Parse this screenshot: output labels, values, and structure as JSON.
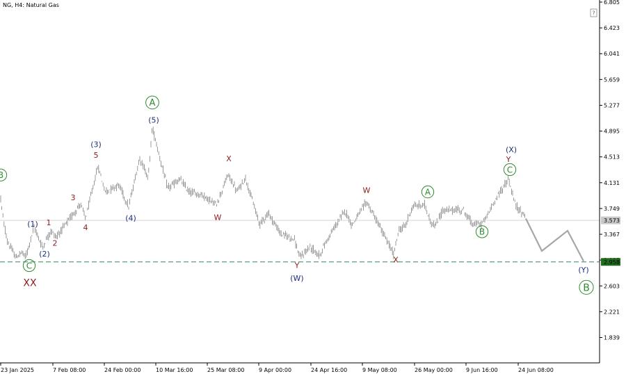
{
  "chart_data": {
    "type": "candlestick",
    "symbol_label": "NG, H4:  Natural Gas",
    "colors": {
      "candle": "#7f7f7f",
      "projection": "#a6a6a6",
      "support": "#2e8b57",
      "current_line": "#c8c8c8",
      "red": "#8b1a1a",
      "blue": "#1f2e7a",
      "green": "#2e8b2e",
      "badge": "#1f6b1f",
      "current_badge": "#c8c8c8"
    },
    "y_axis": {
      "min": 1.45,
      "max": 6.805,
      "ticks": [
        "6.805",
        "6.423",
        "6.041",
        "5.659",
        "5.277",
        "4.895",
        "4.513",
        "4.131",
        "3.749",
        "3.367",
        "2.985",
        "2.603",
        "2.221",
        "1.839"
      ]
    },
    "x_axis": {
      "ticks": [
        "23 Jan 2025",
        "7 Feb 08:00",
        "24 Feb 00:00",
        "10 Mar 16:00",
        "25 Mar 08:00",
        "9 Apr 00:00",
        "24 Apr 16:00",
        "9 May 08:00",
        "26 May 00:00",
        "9 Jun 16:00",
        "24 Jun 08:00"
      ]
    },
    "current_price": "3.573",
    "support_price": "2.958",
    "price_path": [
      {
        "bar": 0,
        "price": 3.9
      },
      {
        "bar": 4,
        "price": 3.55
      },
      {
        "bar": 10,
        "price": 3.25
      },
      {
        "bar": 22,
        "price": 3.02
      },
      {
        "bar": 30,
        "price": 3.1
      },
      {
        "bar": 36,
        "price": 3.03
      },
      {
        "bar": 48,
        "price": 3.48
      },
      {
        "bar": 60,
        "price": 3.17
      },
      {
        "bar": 72,
        "price": 3.42
      },
      {
        "bar": 80,
        "price": 3.33
      },
      {
        "bar": 98,
        "price": 3.58
      },
      {
        "bar": 115,
        "price": 3.82
      },
      {
        "bar": 122,
        "price": 3.6
      },
      {
        "bar": 140,
        "price": 4.38
      },
      {
        "bar": 150,
        "price": 4.0
      },
      {
        "bar": 170,
        "price": 4.1
      },
      {
        "bar": 184,
        "price": 3.77
      },
      {
        "bar": 200,
        "price": 4.5
      },
      {
        "bar": 212,
        "price": 4.2
      },
      {
        "bar": 218,
        "price": 4.95
      },
      {
        "bar": 230,
        "price": 4.45
      },
      {
        "bar": 240,
        "price": 4.05
      },
      {
        "bar": 258,
        "price": 4.18
      },
      {
        "bar": 270,
        "price": 4.0
      },
      {
        "bar": 290,
        "price": 3.95
      },
      {
        "bar": 310,
        "price": 3.8
      },
      {
        "bar": 327,
        "price": 4.25
      },
      {
        "bar": 340,
        "price": 4.0
      },
      {
        "bar": 352,
        "price": 4.2
      },
      {
        "bar": 372,
        "price": 3.52
      },
      {
        "bar": 385,
        "price": 3.68
      },
      {
        "bar": 402,
        "price": 3.38
      },
      {
        "bar": 422,
        "price": 3.3
      },
      {
        "bar": 430,
        "price": 3.02
      },
      {
        "bar": 445,
        "price": 3.18
      },
      {
        "bar": 458,
        "price": 3.05
      },
      {
        "bar": 470,
        "price": 3.3
      },
      {
        "bar": 485,
        "price": 3.55
      },
      {
        "bar": 495,
        "price": 3.72
      },
      {
        "bar": 505,
        "price": 3.5
      },
      {
        "bar": 526,
        "price": 3.85
      },
      {
        "bar": 545,
        "price": 3.48
      },
      {
        "bar": 565,
        "price": 3.07
      },
      {
        "bar": 572,
        "price": 3.42
      },
      {
        "bar": 582,
        "price": 3.5
      },
      {
        "bar": 592,
        "price": 3.78
      },
      {
        "bar": 610,
        "price": 3.8
      },
      {
        "bar": 618,
        "price": 3.55
      },
      {
        "bar": 625,
        "price": 3.48
      },
      {
        "bar": 635,
        "price": 3.72
      },
      {
        "bar": 665,
        "price": 3.73
      },
      {
        "bar": 678,
        "price": 3.52
      },
      {
        "bar": 692,
        "price": 3.52
      },
      {
        "bar": 700,
        "price": 3.65
      },
      {
        "bar": 712,
        "price": 3.9
      },
      {
        "bar": 730,
        "price": 4.18
      },
      {
        "bar": 740,
        "price": 3.8
      },
      {
        "bar": 755,
        "price": 3.62
      }
    ],
    "projection": [
      {
        "bar": 755,
        "price": 3.6
      },
      {
        "bar": 778,
        "price": 3.12
      },
      {
        "bar": 815,
        "price": 3.42
      },
      {
        "bar": 838,
        "price": 2.97
      }
    ],
    "annotations": [
      {
        "text": "B",
        "color": "green",
        "circle": true,
        "bar": 0,
        "price": 4.2,
        "size": 12
      },
      {
        "text": "C",
        "color": "green",
        "circle": true,
        "bar": 41,
        "price": 2.86,
        "size": 12
      },
      {
        "text": "XX",
        "color": "red",
        "circle": false,
        "bar": 42,
        "price": 2.6,
        "size": 14
      },
      {
        "text": "(1)",
        "color": "blue",
        "circle": false,
        "bar": 46,
        "price": 3.48,
        "size": 11
      },
      {
        "text": "1",
        "color": "red",
        "circle": false,
        "bar": 69,
        "price": 3.5,
        "size": 11
      },
      {
        "text": "(2)",
        "color": "blue",
        "circle": false,
        "bar": 63,
        "price": 3.04,
        "size": 11
      },
      {
        "text": "2",
        "color": "red",
        "circle": false,
        "bar": 78,
        "price": 3.2,
        "size": 11
      },
      {
        "text": "3",
        "color": "red",
        "circle": false,
        "bar": 104,
        "price": 3.87,
        "size": 11
      },
      {
        "text": "4",
        "color": "red",
        "circle": false,
        "bar": 122,
        "price": 3.43,
        "size": 11
      },
      {
        "text": "(3)",
        "color": "blue",
        "circle": false,
        "bar": 137,
        "price": 4.66,
        "size": 11
      },
      {
        "text": "5",
        "color": "red",
        "circle": false,
        "bar": 137,
        "price": 4.5,
        "size": 11
      },
      {
        "text": "(4)",
        "color": "blue",
        "circle": false,
        "bar": 187,
        "price": 3.57,
        "size": 11
      },
      {
        "text": "(5)",
        "color": "blue",
        "circle": false,
        "bar": 220,
        "price": 5.02,
        "size": 11
      },
      {
        "text": "A",
        "color": "green",
        "circle": true,
        "bar": 218,
        "price": 5.27,
        "size": 13
      },
      {
        "text": "X",
        "color": "red",
        "circle": false,
        "bar": 328,
        "price": 4.45,
        "size": 11
      },
      {
        "text": "W",
        "color": "red",
        "circle": false,
        "bar": 312,
        "price": 3.58,
        "size": 11
      },
      {
        "text": "Y",
        "color": "red",
        "circle": false,
        "bar": 426,
        "price": 2.87,
        "size": 11
      },
      {
        "text": "(W)",
        "color": "blue",
        "circle": false,
        "bar": 426,
        "price": 2.68,
        "size": 11
      },
      {
        "text": "W",
        "color": "red",
        "circle": false,
        "bar": 526,
        "price": 3.98,
        "size": 11
      },
      {
        "text": "X",
        "color": "red",
        "circle": false,
        "bar": 568,
        "price": 2.95,
        "size": 11
      },
      {
        "text": "A",
        "color": "green",
        "circle": true,
        "bar": 614,
        "price": 3.95,
        "size": 12
      },
      {
        "text": "B",
        "color": "green",
        "circle": true,
        "bar": 692,
        "price": 3.36,
        "size": 12
      },
      {
        "text": "(X)",
        "color": "blue",
        "circle": false,
        "bar": 734,
        "price": 4.58,
        "size": 11
      },
      {
        "text": "Y",
        "color": "red",
        "circle": false,
        "bar": 730,
        "price": 4.44,
        "size": 11
      },
      {
        "text": "C",
        "color": "green",
        "circle": true,
        "bar": 732,
        "price": 4.28,
        "size": 12
      },
      {
        "text": "(Y)",
        "color": "blue",
        "circle": false,
        "bar": 838,
        "price": 2.8,
        "size": 11
      },
      {
        "text": "B",
        "color": "green",
        "circle": true,
        "bar": 842,
        "price": 2.53,
        "size": 14
      }
    ],
    "grid": false,
    "legend": "none"
  }
}
